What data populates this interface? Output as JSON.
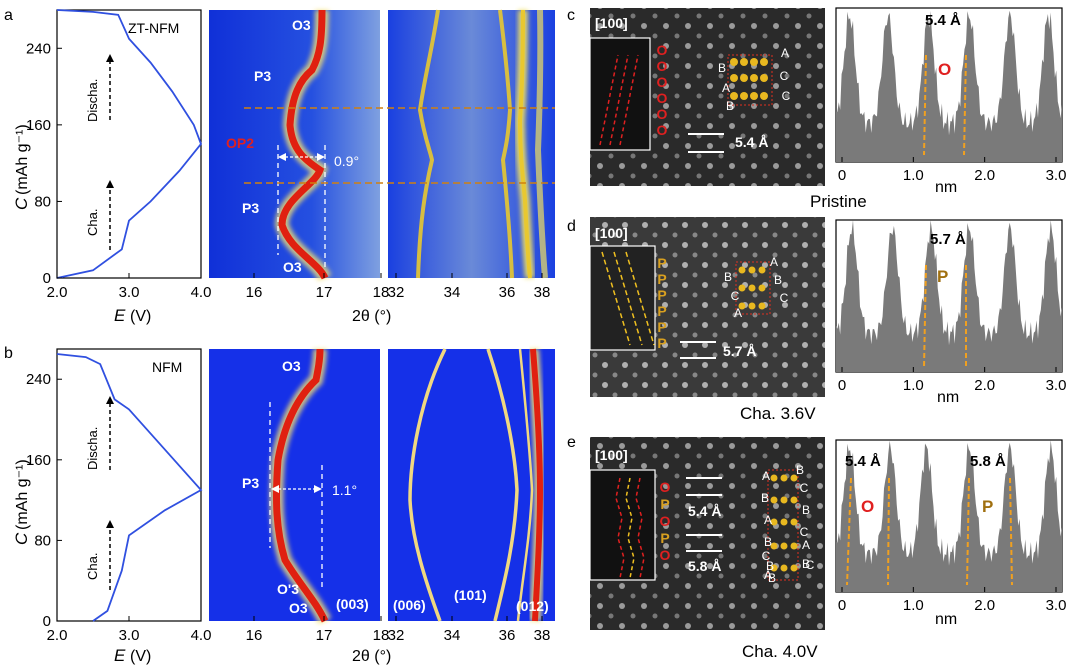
{
  "panels": {
    "a": {
      "letter": "a",
      "sample": "ZT-NFM",
      "pattern_labels": {
        "o3_top": "O3",
        "p3_top": "P3",
        "op2": "OP2",
        "p3_bottom": "P3",
        "o3_bottom": "O3"
      },
      "shift": "0.9°"
    },
    "b": {
      "letter": "b",
      "sample": "NFM",
      "pattern_labels": {
        "o3_top": "O3",
        "p3": "P3",
        "o3_prime": "O'3",
        "o3_bottom": "O3"
      },
      "shift": "1.1°",
      "peaks": {
        "p003": "(003)",
        "p006": "(006)",
        "p101": "(101)",
        "p012": "(012)"
      }
    },
    "c": {
      "letter": "c",
      "zone": "[100]",
      "spacing": "5.4 Å",
      "peak_label": "5.4 Å",
      "phase": "O",
      "caption": "Pristine",
      "stack": [
        "O",
        "O",
        "O",
        "O",
        "O",
        "O"
      ],
      "seq": [
        "A",
        "B",
        "C",
        "A",
        "C",
        "B"
      ]
    },
    "d": {
      "letter": "d",
      "zone": "[100]",
      "spacing": "5.7 Å",
      "peak_label": "5.7 Å",
      "phase": "P",
      "caption": "Cha. 3.6V",
      "stack": [
        "P",
        "P",
        "P",
        "P",
        "P",
        "P"
      ],
      "seq": [
        "A",
        "B",
        "B",
        "C",
        "C",
        "A"
      ]
    },
    "e": {
      "letter": "e",
      "zone": "[100]",
      "spacing_1": "5.4 Å",
      "spacing_2": "5.8 Å",
      "peak_label_1": "5.4 Å",
      "peak_label_2": "5.8 Å",
      "phase_1": "O",
      "phase_2": "P",
      "caption": "Cha. 4.0V",
      "stack": [
        "O",
        "P",
        "O",
        "P",
        "O"
      ],
      "seq": [
        "B",
        "A",
        "C",
        "B",
        "B",
        "A",
        "C",
        "B",
        "A",
        "C",
        "B",
        "B",
        "C",
        "A",
        "B"
      ]
    }
  },
  "axes": {
    "capacity_label": "C",
    "capacity_unit": "(mAh g⁻¹)",
    "voltage_label": "E",
    "voltage_unit": "(V)",
    "twotheta_label": "2θ (°)",
    "nm_label": "nm",
    "cha_label": "Cha.",
    "discha_label": "Discha."
  },
  "chart_data": [
    {
      "type": "line",
      "title": "ZT-NFM",
      "xlabel": "E (V)",
      "ylabel": "C (mAh g-1)",
      "xlim": [
        2.0,
        4.0
      ],
      "ylim": [
        0,
        280
      ],
      "x": [
        2.0,
        2.5,
        2.85,
        3.0,
        3.3,
        3.6,
        3.9,
        4.0,
        3.7,
        3.3,
        3.0,
        2.9,
        2.5,
        2.0
      ],
      "y": [
        280,
        278,
        275,
        250,
        225,
        195,
        160,
        140,
        112,
        80,
        60,
        30,
        8,
        0
      ],
      "xticks": [
        2.0,
        3.0,
        4.0
      ],
      "yticks": [
        0,
        80,
        160,
        240
      ]
    },
    {
      "type": "line",
      "title": "NFM",
      "xlabel": "E (V)",
      "ylabel": "C (mAh g-1)",
      "xlim": [
        2.0,
        4.0
      ],
      "ylim": [
        0,
        270
      ],
      "x": [
        2.0,
        2.4,
        2.6,
        2.8,
        3.0,
        3.5,
        4.0,
        3.5,
        3.0,
        2.9,
        2.7,
        2.5
      ],
      "y": [
        265,
        262,
        255,
        220,
        210,
        170,
        130,
        110,
        85,
        50,
        10,
        0
      ],
      "xticks": [
        2.0,
        3.0,
        4.0
      ],
      "yticks": [
        0,
        80,
        160,
        240
      ]
    },
    {
      "type": "heatmap",
      "xlabel": "2θ (°)",
      "xticks": [
        16,
        17,
        18,
        32,
        34,
        36,
        38
      ]
    },
    {
      "type": "bar",
      "xlabel": "nm",
      "xticks": [
        0,
        1.0,
        2.0,
        3.0
      ],
      "panel": "c"
    },
    {
      "type": "bar",
      "xlabel": "nm",
      "xticks": [
        0,
        1.0,
        2.0,
        3.0
      ],
      "panel": "d"
    },
    {
      "type": "bar",
      "xlabel": "nm",
      "xticks": [
        0,
        1.0,
        2.0,
        3.0
      ],
      "panel": "e"
    }
  ]
}
